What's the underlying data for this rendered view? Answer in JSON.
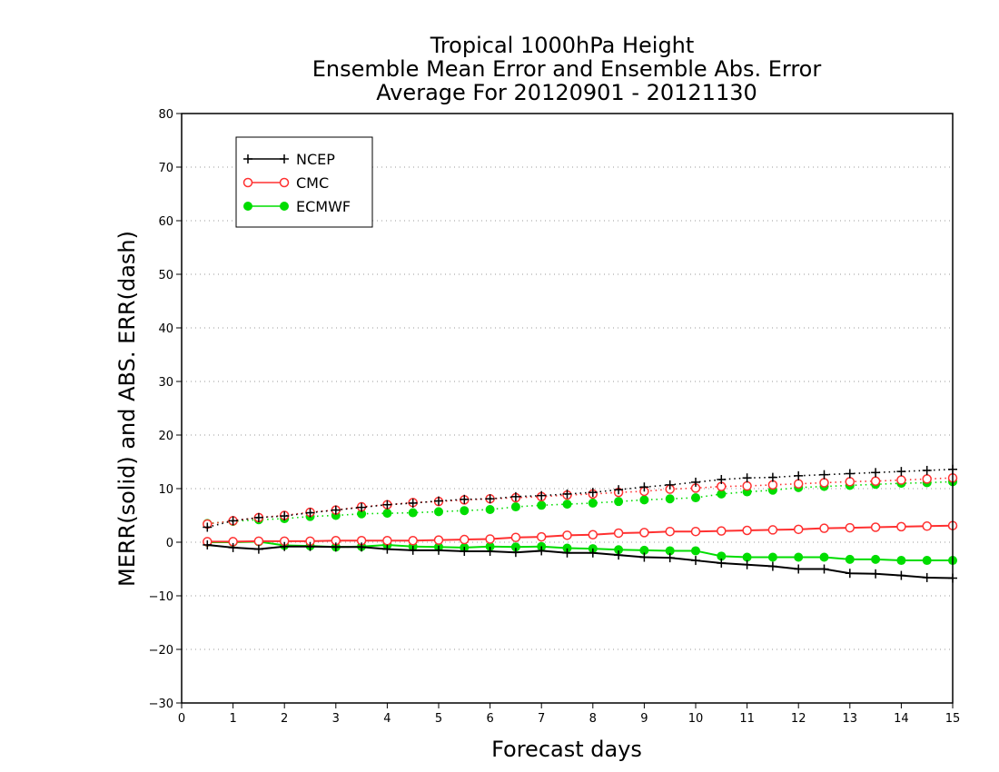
{
  "chart_data": {
    "type": "line",
    "title_lines": [
      "Tropical 1000hPa Height",
      "Ensemble Mean Error and Ensemble Abs. Error",
      "Average For 20120901 - 20121130"
    ],
    "xlabel": "Forecast days",
    "ylabel": "MERR(solid) and ABS. ERR(dash)",
    "xlim": [
      0,
      15
    ],
    "ylim": [
      -30,
      80
    ],
    "x_ticks": [
      0,
      1,
      2,
      3,
      4,
      5,
      6,
      7,
      8,
      9,
      10,
      11,
      12,
      13,
      14,
      15
    ],
    "y_ticks": [
      -30,
      -20,
      -10,
      0,
      10,
      20,
      30,
      40,
      50,
      60,
      70,
      80
    ],
    "grid": "horizontal dotted",
    "legend_position": "top-left",
    "x": [
      0.5,
      1,
      1.5,
      2,
      2.5,
      3,
      3.5,
      4,
      4.5,
      5,
      5.5,
      6,
      6.5,
      7,
      7.5,
      8,
      8.5,
      9,
      9.5,
      10,
      10.5,
      11,
      11.5,
      12,
      12.5,
      13,
      13.5,
      14,
      14.5,
      15
    ],
    "series": [
      {
        "name": "NCEP",
        "color": "#000000",
        "marker": "plus",
        "mean_error": [
          -0.5,
          -1.0,
          -1.3,
          -0.8,
          -0.8,
          -0.9,
          -0.9,
          -1.3,
          -1.5,
          -1.5,
          -1.7,
          -1.7,
          -1.9,
          -1.6,
          -2.0,
          -2.0,
          -2.4,
          -2.8,
          -2.9,
          -3.4,
          -3.9,
          -4.2,
          -4.5,
          -5.0,
          -5.0,
          -5.8,
          -5.9,
          -6.2,
          -6.6,
          -6.7
        ],
        "abs_error": [
          2.8,
          4.0,
          4.6,
          4.9,
          5.5,
          6.0,
          6.5,
          7.0,
          7.3,
          7.7,
          8.0,
          8.1,
          8.5,
          8.7,
          9.0,
          9.3,
          9.8,
          10.3,
          10.7,
          11.2,
          11.7,
          12.0,
          12.1,
          12.4,
          12.6,
          12.8,
          13.0,
          13.2,
          13.4,
          13.6
        ]
      },
      {
        "name": "CMC",
        "color": "#ff3030",
        "marker": "open-circle",
        "mean_error": [
          0.1,
          0.1,
          0.2,
          0.2,
          0.2,
          0.3,
          0.3,
          0.3,
          0.3,
          0.4,
          0.5,
          0.6,
          0.9,
          1.0,
          1.3,
          1.4,
          1.7,
          1.8,
          2.0,
          2.0,
          2.1,
          2.2,
          2.3,
          2.4,
          2.6,
          2.7,
          2.8,
          2.9,
          3.0,
          3.1
        ],
        "abs_error": [
          3.4,
          4.0,
          4.6,
          5.0,
          5.6,
          6.0,
          6.6,
          7.0,
          7.4,
          7.6,
          7.9,
          8.1,
          8.3,
          8.5,
          8.8,
          9.0,
          9.3,
          9.5,
          9.9,
          10.1,
          10.4,
          10.5,
          10.7,
          10.9,
          11.1,
          11.3,
          11.4,
          11.6,
          11.8,
          12.0
        ]
      },
      {
        "name": "ECMWF",
        "color": "#00dd00",
        "marker": "filled-circle",
        "mean_error": [
          0.0,
          0.0,
          0.1,
          -0.6,
          -0.7,
          -0.9,
          -0.8,
          -0.5,
          -0.8,
          -0.9,
          -1.0,
          -0.8,
          -0.9,
          -0.8,
          -1.1,
          -1.2,
          -1.4,
          -1.5,
          -1.6,
          -1.6,
          -2.6,
          -2.8,
          -2.8,
          -2.8,
          -2.8,
          -3.2,
          -3.2,
          -3.4,
          -3.4,
          -3.4
        ],
        "abs_error": [
          3.5,
          3.9,
          4.2,
          4.4,
          4.8,
          5.0,
          5.3,
          5.4,
          5.5,
          5.7,
          5.9,
          6.1,
          6.6,
          6.9,
          7.1,
          7.3,
          7.6,
          7.9,
          8.1,
          8.3,
          9.0,
          9.4,
          9.7,
          10.2,
          10.4,
          10.6,
          10.8,
          11.0,
          11.1,
          11.3
        ]
      }
    ]
  }
}
